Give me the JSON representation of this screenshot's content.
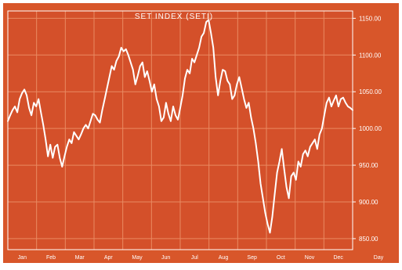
{
  "colors": {
    "background": "#d8562a",
    "plot": "#d4502a",
    "grid": "#e98a62",
    "line": "#ffffff",
    "text": "#ffffff",
    "frame": "#ffffff"
  },
  "chart_data": {
    "type": "line",
    "title": "SET INDEX (SETI)",
    "xlabel": "",
    "ylabel": "",
    "x_ticks": [
      "Jan",
      "Feb",
      "Mar",
      "Apr",
      "May",
      "Jun",
      "Jul",
      "Aug",
      "Sep",
      "Oct",
      "Nov",
      "Dec"
    ],
    "x_end_label": "Day",
    "y_ticks": [
      850,
      900,
      950,
      1000,
      1050,
      1100,
      1150
    ],
    "y_tick_labels": [
      "850.00",
      "900.00",
      "950.00",
      "1000.00",
      "1050.00",
      "1100.00",
      "1150.00"
    ],
    "ylim": [
      835,
      1160
    ],
    "grid": true,
    "series": [
      {
        "values": [
          1010,
          1018,
          1025,
          1030,
          1022,
          1040,
          1048,
          1053,
          1045,
          1028,
          1018,
          1035,
          1030,
          1040,
          1022,
          1005,
          985,
          962,
          978,
          960,
          975,
          978,
          960,
          948,
          962,
          975,
          985,
          980,
          995,
          990,
          985,
          992,
          1000,
          1005,
          1000,
          1010,
          1020,
          1018,
          1012,
          1008,
          1025,
          1040,
          1055,
          1070,
          1085,
          1080,
          1092,
          1098,
          1110,
          1105,
          1108,
          1100,
          1090,
          1080,
          1060,
          1072,
          1085,
          1090,
          1070,
          1078,
          1065,
          1050,
          1060,
          1040,
          1030,
          1010,
          1015,
          1035,
          1020,
          1010,
          1030,
          1018,
          1012,
          1028,
          1045,
          1068,
          1080,
          1075,
          1095,
          1090,
          1100,
          1110,
          1125,
          1130,
          1145,
          1148,
          1130,
          1110,
          1070,
          1045,
          1065,
          1080,
          1078,
          1065,
          1060,
          1040,
          1045,
          1060,
          1070,
          1055,
          1040,
          1028,
          1035,
          1015,
          1000,
          980,
          955,
          925,
          905,
          885,
          870,
          858,
          880,
          910,
          940,
          955,
          972,
          945,
          920,
          905,
          935,
          940,
          930,
          955,
          948,
          965,
          970,
          962,
          975,
          980,
          985,
          972,
          992,
          1000,
          1018,
          1035,
          1042,
          1030,
          1038,
          1045,
          1030,
          1040,
          1042,
          1035,
          1030,
          1028,
          1025
        ]
      }
    ]
  }
}
